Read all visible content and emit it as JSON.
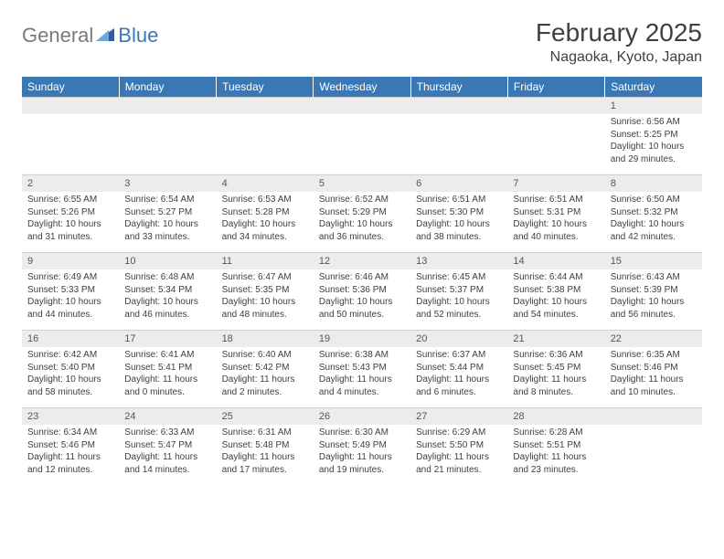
{
  "logo": {
    "part1": "General",
    "part2": "Blue"
  },
  "title": "February 2025",
  "subtitle": "Nagaoka, Kyoto, Japan",
  "header_bg": "#3a78b5",
  "header_fg": "#ffffff",
  "daynum_bg": "#ececec",
  "text_color": "#404040",
  "logo_gray": "#7a7a7a",
  "logo_blue": "#3a78b5",
  "days": [
    "Sunday",
    "Monday",
    "Tuesday",
    "Wednesday",
    "Thursday",
    "Friday",
    "Saturday"
  ],
  "weeks": [
    {
      "nums": [
        "",
        "",
        "",
        "",
        "",
        "",
        "1"
      ],
      "cells": [
        {
          "sunrise": "",
          "sunset": "",
          "daylight": ""
        },
        {
          "sunrise": "",
          "sunset": "",
          "daylight": ""
        },
        {
          "sunrise": "",
          "sunset": "",
          "daylight": ""
        },
        {
          "sunrise": "",
          "sunset": "",
          "daylight": ""
        },
        {
          "sunrise": "",
          "sunset": "",
          "daylight": ""
        },
        {
          "sunrise": "",
          "sunset": "",
          "daylight": ""
        },
        {
          "sunrise": "Sunrise: 6:56 AM",
          "sunset": "Sunset: 5:25 PM",
          "daylight": "Daylight: 10 hours and 29 minutes."
        }
      ]
    },
    {
      "nums": [
        "2",
        "3",
        "4",
        "5",
        "6",
        "7",
        "8"
      ],
      "cells": [
        {
          "sunrise": "Sunrise: 6:55 AM",
          "sunset": "Sunset: 5:26 PM",
          "daylight": "Daylight: 10 hours and 31 minutes."
        },
        {
          "sunrise": "Sunrise: 6:54 AM",
          "sunset": "Sunset: 5:27 PM",
          "daylight": "Daylight: 10 hours and 33 minutes."
        },
        {
          "sunrise": "Sunrise: 6:53 AM",
          "sunset": "Sunset: 5:28 PM",
          "daylight": "Daylight: 10 hours and 34 minutes."
        },
        {
          "sunrise": "Sunrise: 6:52 AM",
          "sunset": "Sunset: 5:29 PM",
          "daylight": "Daylight: 10 hours and 36 minutes."
        },
        {
          "sunrise": "Sunrise: 6:51 AM",
          "sunset": "Sunset: 5:30 PM",
          "daylight": "Daylight: 10 hours and 38 minutes."
        },
        {
          "sunrise": "Sunrise: 6:51 AM",
          "sunset": "Sunset: 5:31 PM",
          "daylight": "Daylight: 10 hours and 40 minutes."
        },
        {
          "sunrise": "Sunrise: 6:50 AM",
          "sunset": "Sunset: 5:32 PM",
          "daylight": "Daylight: 10 hours and 42 minutes."
        }
      ]
    },
    {
      "nums": [
        "9",
        "10",
        "11",
        "12",
        "13",
        "14",
        "15"
      ],
      "cells": [
        {
          "sunrise": "Sunrise: 6:49 AM",
          "sunset": "Sunset: 5:33 PM",
          "daylight": "Daylight: 10 hours and 44 minutes."
        },
        {
          "sunrise": "Sunrise: 6:48 AM",
          "sunset": "Sunset: 5:34 PM",
          "daylight": "Daylight: 10 hours and 46 minutes."
        },
        {
          "sunrise": "Sunrise: 6:47 AM",
          "sunset": "Sunset: 5:35 PM",
          "daylight": "Daylight: 10 hours and 48 minutes."
        },
        {
          "sunrise": "Sunrise: 6:46 AM",
          "sunset": "Sunset: 5:36 PM",
          "daylight": "Daylight: 10 hours and 50 minutes."
        },
        {
          "sunrise": "Sunrise: 6:45 AM",
          "sunset": "Sunset: 5:37 PM",
          "daylight": "Daylight: 10 hours and 52 minutes."
        },
        {
          "sunrise": "Sunrise: 6:44 AM",
          "sunset": "Sunset: 5:38 PM",
          "daylight": "Daylight: 10 hours and 54 minutes."
        },
        {
          "sunrise": "Sunrise: 6:43 AM",
          "sunset": "Sunset: 5:39 PM",
          "daylight": "Daylight: 10 hours and 56 minutes."
        }
      ]
    },
    {
      "nums": [
        "16",
        "17",
        "18",
        "19",
        "20",
        "21",
        "22"
      ],
      "cells": [
        {
          "sunrise": "Sunrise: 6:42 AM",
          "sunset": "Sunset: 5:40 PM",
          "daylight": "Daylight: 10 hours and 58 minutes."
        },
        {
          "sunrise": "Sunrise: 6:41 AM",
          "sunset": "Sunset: 5:41 PM",
          "daylight": "Daylight: 11 hours and 0 minutes."
        },
        {
          "sunrise": "Sunrise: 6:40 AM",
          "sunset": "Sunset: 5:42 PM",
          "daylight": "Daylight: 11 hours and 2 minutes."
        },
        {
          "sunrise": "Sunrise: 6:38 AM",
          "sunset": "Sunset: 5:43 PM",
          "daylight": "Daylight: 11 hours and 4 minutes."
        },
        {
          "sunrise": "Sunrise: 6:37 AM",
          "sunset": "Sunset: 5:44 PM",
          "daylight": "Daylight: 11 hours and 6 minutes."
        },
        {
          "sunrise": "Sunrise: 6:36 AM",
          "sunset": "Sunset: 5:45 PM",
          "daylight": "Daylight: 11 hours and 8 minutes."
        },
        {
          "sunrise": "Sunrise: 6:35 AM",
          "sunset": "Sunset: 5:46 PM",
          "daylight": "Daylight: 11 hours and 10 minutes."
        }
      ]
    },
    {
      "nums": [
        "23",
        "24",
        "25",
        "26",
        "27",
        "28",
        ""
      ],
      "cells": [
        {
          "sunrise": "Sunrise: 6:34 AM",
          "sunset": "Sunset: 5:46 PM",
          "daylight": "Daylight: 11 hours and 12 minutes."
        },
        {
          "sunrise": "Sunrise: 6:33 AM",
          "sunset": "Sunset: 5:47 PM",
          "daylight": "Daylight: 11 hours and 14 minutes."
        },
        {
          "sunrise": "Sunrise: 6:31 AM",
          "sunset": "Sunset: 5:48 PM",
          "daylight": "Daylight: 11 hours and 17 minutes."
        },
        {
          "sunrise": "Sunrise: 6:30 AM",
          "sunset": "Sunset: 5:49 PM",
          "daylight": "Daylight: 11 hours and 19 minutes."
        },
        {
          "sunrise": "Sunrise: 6:29 AM",
          "sunset": "Sunset: 5:50 PM",
          "daylight": "Daylight: 11 hours and 21 minutes."
        },
        {
          "sunrise": "Sunrise: 6:28 AM",
          "sunset": "Sunset: 5:51 PM",
          "daylight": "Daylight: 11 hours and 23 minutes."
        },
        {
          "sunrise": "",
          "sunset": "",
          "daylight": ""
        }
      ]
    }
  ]
}
